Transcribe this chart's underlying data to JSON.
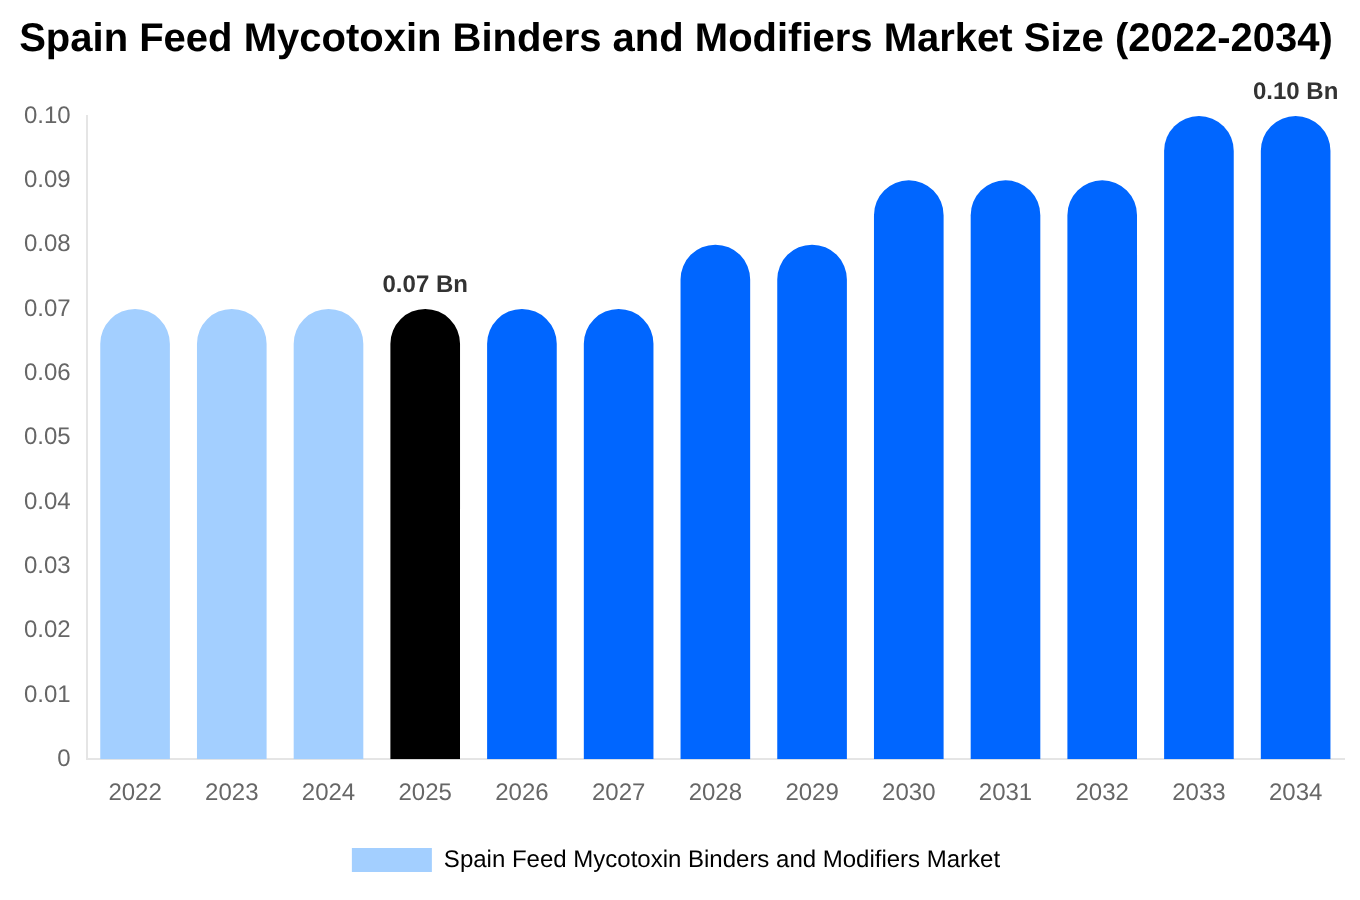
{
  "chart_data": {
    "type": "bar",
    "title": "Spain Feed Mycotoxin Binders and Modifiers Market Size (2022-2034)",
    "categories": [
      "2022",
      "2023",
      "2024",
      "2025",
      "2026",
      "2027",
      "2028",
      "2029",
      "2030",
      "2031",
      "2032",
      "2033",
      "2034"
    ],
    "series": [
      {
        "name": "Spain Feed Mycotoxin Binders and Modifiers Market",
        "color": "#a3cfff",
        "colors": [
          "#a3cfff",
          "#a3cfff",
          "#a3cfff",
          "#000000",
          "#0066ff",
          "#0066ff",
          "#0066ff",
          "#0066ff",
          "#0066ff",
          "#0066ff",
          "#0066ff",
          "#0066ff",
          "#0066ff"
        ],
        "values": [
          0.07,
          0.07,
          0.07,
          0.07,
          0.07,
          0.07,
          0.08,
          0.08,
          0.09,
          0.09,
          0.09,
          0.1,
          0.1
        ],
        "value_labels": [
          null,
          null,
          null,
          "0.07 Bn",
          null,
          null,
          null,
          null,
          null,
          null,
          null,
          null,
          "0.10 Bn"
        ]
      }
    ],
    "ylim": [
      0,
      0.1
    ],
    "yticks": [
      0,
      0.01,
      0.02,
      0.03,
      0.04,
      0.05,
      0.06,
      0.07,
      0.08,
      0.09,
      {
        "value": 0.1,
        "label": "0.10"
      }
    ],
    "grid": false,
    "legend": "bottom"
  }
}
